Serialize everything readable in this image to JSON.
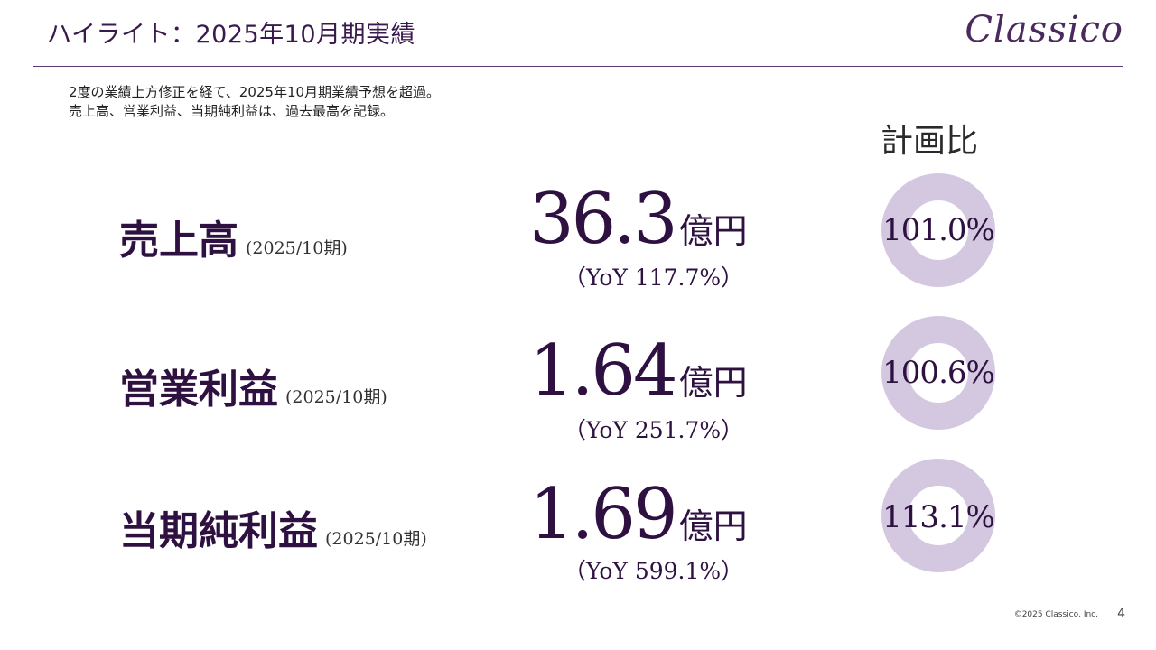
{
  "header": {
    "title": "ハイライト：2025年10月期実績",
    "logo_text": "Classico"
  },
  "lead": {
    "line1": "2度の業績上方修正を経て、2025年10月期業績予想を超過。",
    "line2": "売上高、営業利益、当期純利益は、過去最高を記録。"
  },
  "plan_ratio_heading": "計画比",
  "metrics": [
    {
      "label": "売上高",
      "period": "(2025/10期)",
      "value": "36.3",
      "unit": "億円",
      "yoy": "（YoY 117.7%）",
      "plan_ratio": "101.0%"
    },
    {
      "label": "営業利益",
      "period": "(2025/10期)",
      "value": "1.64",
      "unit": "億円",
      "yoy": "（YoY 251.7%）",
      "plan_ratio": "100.6%"
    },
    {
      "label": "当期純利益",
      "period": "(2025/10期)",
      "value": "1.69",
      "unit": "億円",
      "yoy": "（YoY 599.1%）",
      "plan_ratio": "113.1%"
    }
  ],
  "colors": {
    "accent": "#2e1141",
    "ring": "#d3c8df",
    "rule": "#5e3a72"
  },
  "footer": {
    "copyright": "©2025 Classico, Inc.",
    "page": "4"
  }
}
